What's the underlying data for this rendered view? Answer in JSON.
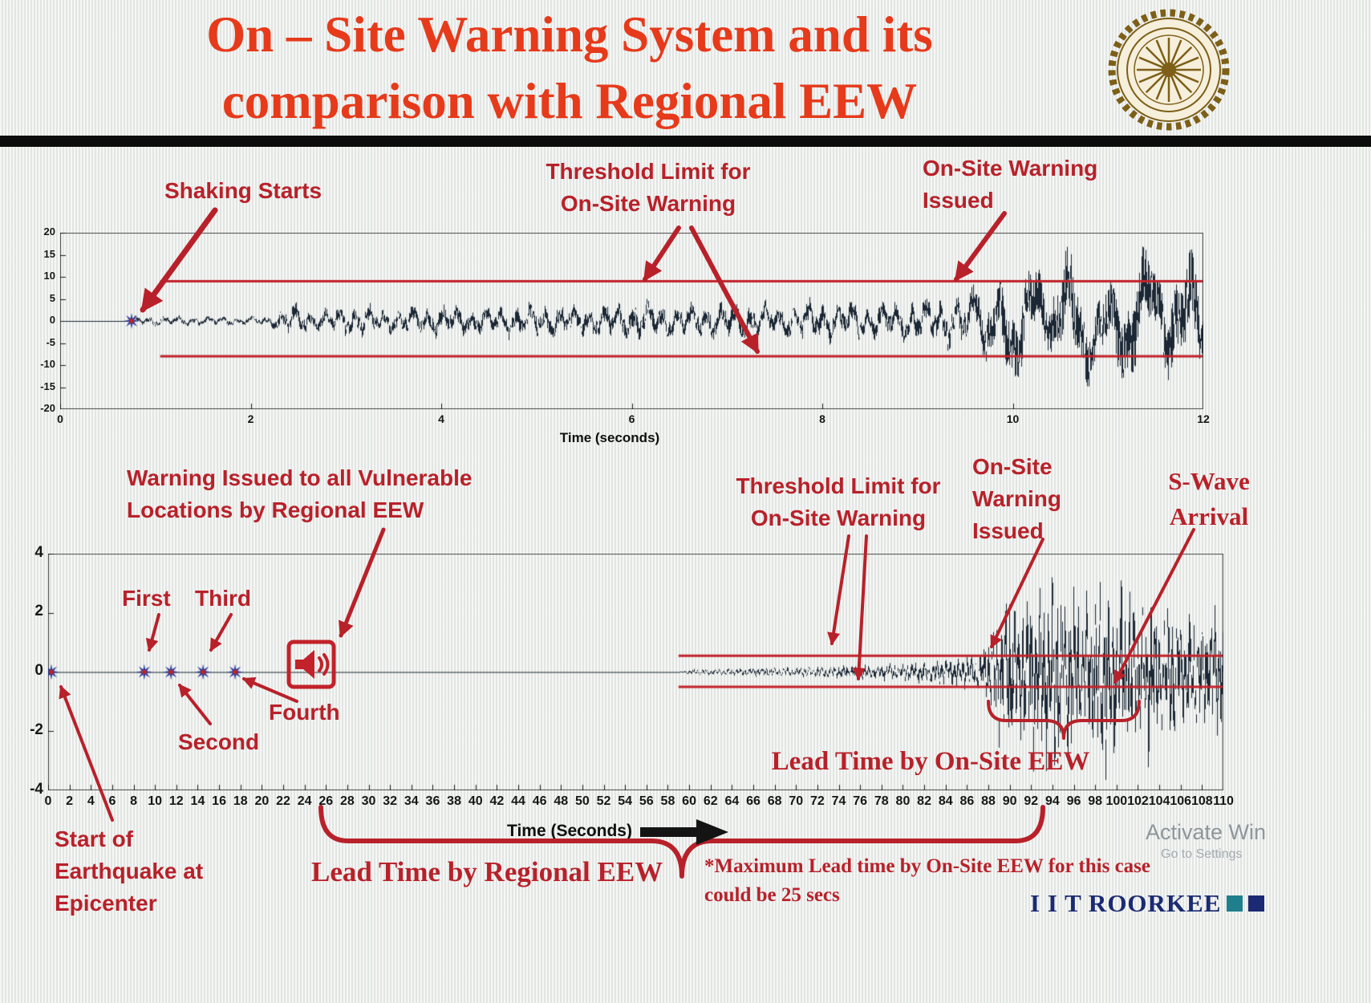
{
  "title": {
    "line1": "On – Site Warning System and its",
    "line2": "comparison with Regional EEW"
  },
  "branding": {
    "institute": "I I T ROORKEE",
    "logo_alt": "IIT Roorkee seal",
    "square_colors": [
      "#1f7f8c",
      "#1b2a72"
    ]
  },
  "watermark": {
    "line1": "Activate Win",
    "line2": "Go to Settings"
  },
  "labels": {
    "shaking_starts": "Shaking Starts",
    "threshold_top": "Threshold Limit for On-Site Warning",
    "onsite_issued_top": "On-Site Warning Issued",
    "regional_warning": "Warning Issued to all Vulnerable Locations by Regional EEW",
    "first": "First",
    "second": "Second",
    "third": "Third",
    "fourth": "Fourth",
    "threshold_bottom": "Threshold Limit for On-Site Warning",
    "onsite_issued_bottom": "On-Site Warning Issued",
    "s_wave": "S-Wave Arrival",
    "lead_onsite": "Lead Time by On-Site EEW",
    "lead_regional": "Lead Time by Regional EEW",
    "start_quake": "Start of Earthquake at Epicenter",
    "footnote": "*Maximum Lead time by On-Site EEW for this case could be 25 secs"
  },
  "chart_data": [
    {
      "type": "line",
      "description": "Single-station accelerogram with on-site warning threshold",
      "xlabel": "Time (seconds)",
      "xlim": [
        0,
        12
      ],
      "ylim": [
        -20,
        20
      ],
      "xticks": [
        0,
        2,
        4,
        6,
        8,
        10,
        12
      ],
      "yticks": [
        20,
        15,
        10,
        5,
        0,
        -5,
        -10,
        -15,
        -20
      ],
      "threshold_upper": 9,
      "threshold_lower": -8,
      "threshold_x_start": 1.05,
      "events": {
        "shaking_starts_t": 0.75,
        "onsite_warning_issued_t": 9.4
      },
      "markers": [
        [
          0.75,
          0
        ]
      ],
      "envelope": [
        [
          0,
          0
        ],
        [
          0.72,
          0
        ],
        [
          0.8,
          1.1
        ],
        [
          1.5,
          0.9
        ],
        [
          2.2,
          1.0
        ],
        [
          2.45,
          3.8
        ],
        [
          2.7,
          2.2
        ],
        [
          3.1,
          3.4
        ],
        [
          3.5,
          2.6
        ],
        [
          4,
          3.2
        ],
        [
          4.5,
          2.8
        ],
        [
          5,
          3.6
        ],
        [
          5.5,
          3.0
        ],
        [
          6,
          4.2
        ],
        [
          6.5,
          3.2
        ],
        [
          7,
          4.0
        ],
        [
          7.5,
          3.4
        ],
        [
          8,
          4.4
        ],
        [
          8.5,
          3.6
        ],
        [
          9,
          4.6
        ],
        [
          9.4,
          5.2
        ],
        [
          9.7,
          8
        ],
        [
          10,
          13
        ],
        [
          10.3,
          10
        ],
        [
          10.6,
          15
        ],
        [
          10.9,
          9.5
        ],
        [
          11.2,
          16
        ],
        [
          11.5,
          11
        ],
        [
          11.8,
          17
        ],
        [
          12,
          13
        ]
      ],
      "freq_env": [
        [
          0,
          6.5
        ],
        [
          9.3,
          6.5
        ],
        [
          9.9,
          2.8
        ],
        [
          12,
          2.1
        ]
      ],
      "seed": 42,
      "wave_color": "#1b2735",
      "threshold_color": "#c2222a"
    },
    {
      "type": "line",
      "description": "Regional EEW vs on-site EEW timeline seismogram",
      "xlabel": "Time (Seconds)",
      "xlim": [
        0,
        110
      ],
      "ylim": [
        -4,
        4
      ],
      "xtick_step": 2,
      "yticks": [
        4,
        2,
        0,
        -2,
        -4
      ],
      "threshold_upper": 0.55,
      "threshold_lower": -0.5,
      "threshold_x_start": 59,
      "events": {
        "start_of_earthquake_t": 0,
        "regional_warnings_t": [
          9,
          11.5,
          14.5,
          17.5
        ],
        "regional_warning_issued_t": 24.5,
        "p_wave_arrival_t": 59.5,
        "onsite_warning_issued_t": 80,
        "s_wave_arrival_t": 93,
        "max_lead_time_secs": 25
      },
      "markers": [
        [
          0.3,
          0
        ],
        [
          9,
          0
        ],
        [
          11.5,
          0
        ],
        [
          14.5,
          0
        ],
        [
          17.5,
          0
        ]
      ],
      "envelope": [
        [
          0,
          0
        ],
        [
          59,
          0
        ],
        [
          59.8,
          0.07
        ],
        [
          62,
          0.1
        ],
        [
          66,
          0.12
        ],
        [
          70,
          0.15
        ],
        [
          74,
          0.18
        ],
        [
          78,
          0.22
        ],
        [
          80,
          0.28
        ],
        [
          82,
          0.3
        ],
        [
          84,
          0.38
        ],
        [
          86,
          0.5
        ],
        [
          87.5,
          0.7
        ],
        [
          88.5,
          1.4
        ],
        [
          90,
          2.6
        ],
        [
          91,
          1.9
        ],
        [
          92,
          2.8
        ],
        [
          93,
          2.2
        ],
        [
          94,
          3.0
        ],
        [
          95,
          2.4
        ],
        [
          96,
          2.8
        ],
        [
          97,
          2.0
        ],
        [
          98,
          2.6
        ],
        [
          99,
          3.2
        ],
        [
          100,
          2.2
        ],
        [
          101,
          2.6
        ],
        [
          102,
          1.9
        ],
        [
          103,
          2.4
        ],
        [
          104,
          1.8
        ],
        [
          105,
          2.2
        ],
        [
          106,
          1.6
        ],
        [
          107,
          2.0
        ],
        [
          108,
          1.5
        ],
        [
          109,
          1.8
        ],
        [
          110,
          1.6
        ]
      ],
      "freq": 2.5,
      "seed": 7,
      "wave_color": "#1b2735",
      "threshold_color": "#c2222a"
    }
  ]
}
